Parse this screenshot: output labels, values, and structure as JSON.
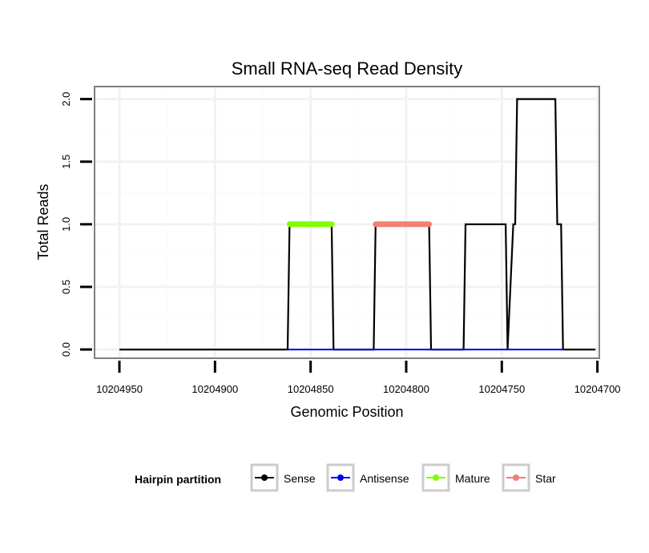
{
  "chart_data": {
    "type": "line",
    "title": "Small RNA-seq Read Density",
    "xlabel": "Genomic Position",
    "ylabel": "Total Reads",
    "xlim": [
      10204963,
      10204699
    ],
    "ylim": [
      -0.07,
      2.1
    ],
    "x_reversed": true,
    "x_ticks": [
      10204950,
      10204900,
      10204850,
      10204800,
      10204750,
      10204700
    ],
    "x_tick_labels": [
      "10204950",
      "10204900",
      "10204850",
      "10204800",
      "10204750",
      "10204700"
    ],
    "y_ticks": [
      0,
      0.5,
      1,
      1.5,
      2
    ],
    "y_tick_labels": [
      "0.0",
      "0.5",
      "1.0",
      "1.5",
      "2.0"
    ],
    "grid": true,
    "legend_position": "bottom",
    "legend_title": "Hairpin partition",
    "series": [
      {
        "name": "Sense",
        "color": "#000000",
        "x": [
          10204950,
          10204862,
          10204861,
          10204839,
          10204838,
          10204817,
          10204816,
          10204788,
          10204787,
          10204770,
          10204769,
          10204748,
          10204747,
          10204744,
          10204743,
          10204742,
          10204741,
          10204722,
          10204721,
          10204719,
          10204718,
          10204701
        ],
        "values": [
          0,
          0,
          1,
          1,
          0,
          0,
          1,
          1,
          0,
          0,
          1,
          1,
          0,
          1,
          1,
          2,
          2,
          2,
          1,
          1,
          0,
          0
        ]
      },
      {
        "name": "Antisense",
        "color": "#0000ff",
        "x": [
          10204862,
          10204718
        ],
        "values": [
          0,
          0
        ]
      },
      {
        "name": "Mature",
        "color": "#7fff00",
        "x": [
          10204861,
          10204839
        ],
        "values": [
          1,
          1
        ]
      },
      {
        "name": "Star",
        "color": "#f08070",
        "x": [
          10204816,
          10204788
        ],
        "values": [
          1,
          1
        ]
      }
    ]
  }
}
